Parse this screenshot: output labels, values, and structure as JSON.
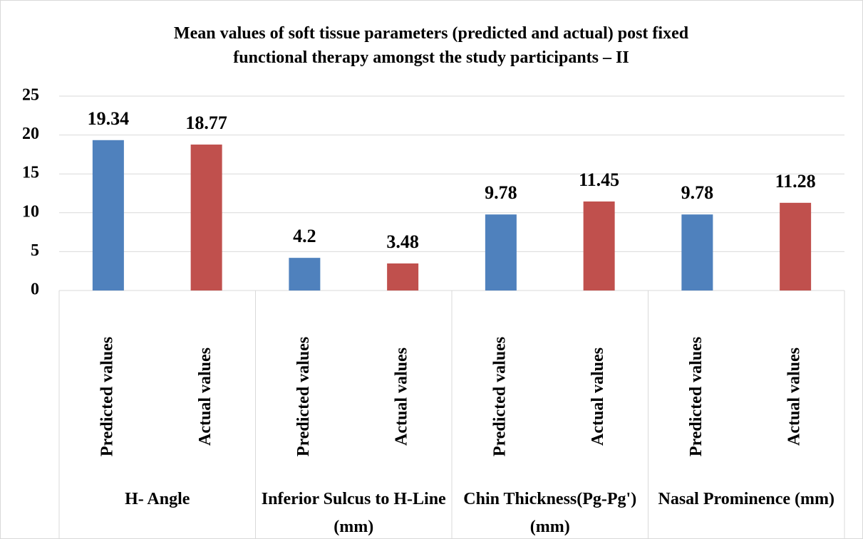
{
  "chart_data": {
    "type": "bar",
    "title": "Mean values of soft tissue parameters (predicted and actual) post fixed functional therapy amongst the study participants – II",
    "categories": [
      "H- Angle",
      "Inferior Sulcus to H-Line (mm)",
      "Chin Thickness(Pg-Pg')(mm)",
      "Nasal Prominence (mm)"
    ],
    "series": [
      {
        "name": "Predicted values",
        "color": "#4f81bd",
        "values": [
          19.34,
          4.2,
          9.78,
          9.78
        ]
      },
      {
        "name": "Actual values",
        "color": "#c0504d",
        "values": [
          18.77,
          3.48,
          11.45,
          11.28
        ]
      }
    ],
    "ylim": [
      0,
      25
    ],
    "yticks": [
      0,
      5,
      10,
      15,
      20,
      25
    ],
    "grid": true
  }
}
